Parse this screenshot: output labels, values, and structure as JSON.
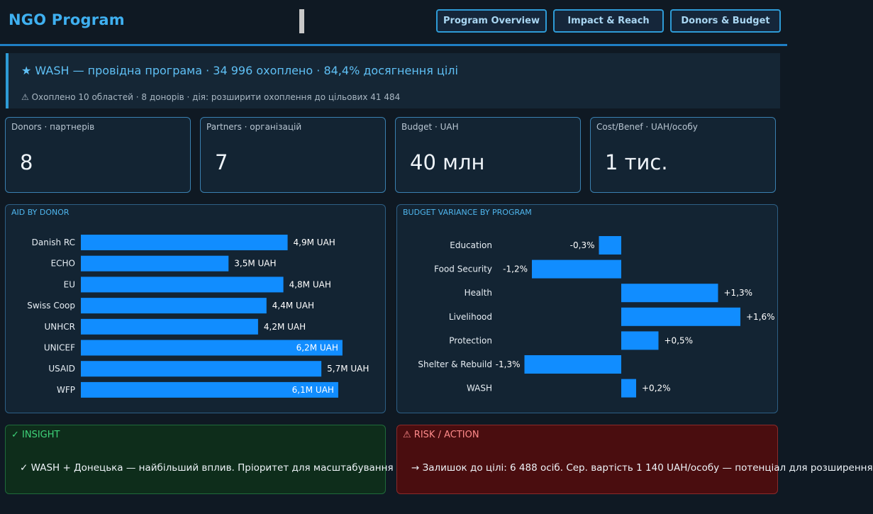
{
  "header": {
    "title": "NGO Program",
    "nav": [
      "Program Overview",
      "Impact & Reach",
      "Donors & Budget"
    ]
  },
  "banner": {
    "main": "★ WASH — провідна програма · 34 996 охоплено · 84,4% досягнення цілі",
    "sub": "⚠ Охоплено 10 областей · 8 донорів · дія: розширити охоплення до цільових 41 484"
  },
  "kpis": [
    {
      "label": "Donors · партнерів",
      "value": "8"
    },
    {
      "label": "Partners · організацій",
      "value": "7"
    },
    {
      "label": "Budget · UAH",
      "value": "40 млн"
    },
    {
      "label": "Cost/Benef · UAH/особу",
      "value": "1 тис."
    }
  ],
  "chart_data": [
    {
      "type": "bar",
      "orientation": "horizontal",
      "title": "AID BY DONOR",
      "categories": [
        "Danish RC",
        "ECHO",
        "EU",
        "Swiss Coop",
        "UNHCR",
        "UNICEF",
        "USAID",
        "WFP"
      ],
      "values": [
        4.9,
        3.5,
        4.8,
        4.4,
        4.2,
        6.2,
        5.7,
        6.1
      ],
      "labels": [
        "4,9M UAH",
        "3,5M UAH",
        "4,8M UAH",
        "4,4M UAH",
        "4,2M UAH",
        "6,2M UAH",
        "5,7M UAH",
        "6,1M UAH"
      ],
      "unit": "M UAH",
      "color": "#118dff"
    },
    {
      "type": "bar",
      "orientation": "horizontal",
      "title": "BUDGET VARIANCE BY PROGRAM",
      "categories": [
        "Education",
        "Food Security",
        "Health",
        "Livelihood",
        "Protection",
        "Shelter & Rebuild",
        "WASH"
      ],
      "values": [
        -0.3,
        -1.2,
        1.3,
        1.6,
        0.5,
        -1.3,
        0.2
      ],
      "labels": [
        "-0,3%",
        "-1,2%",
        "+1,3%",
        "+1,6%",
        "+0,5%",
        "-1,3%",
        "+0,2%"
      ],
      "unit": "%",
      "color": "#118dff"
    }
  ],
  "insight": {
    "title": "✓ INSIGHT",
    "text": "✓ WASH + Донецька — найбільший вплив. Пріоритет для масштабування",
    "color": "#3fd47a"
  },
  "risk": {
    "title": "⚠ RISK / ACTION",
    "text": "→ Залишок до цілі: 6 488 осіб. Сер. вартість 1 140 UAH/особу — потенціал для розширення",
    "color": "#ff8a8a"
  }
}
